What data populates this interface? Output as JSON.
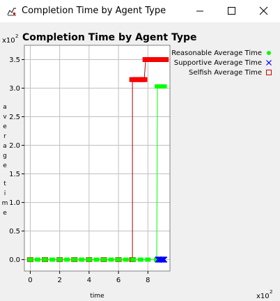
{
  "window": {
    "title": "Completion Time by Agent Type",
    "controls": [
      "minimize",
      "maximize",
      "close"
    ],
    "icon": "chart-app-icon"
  },
  "chart_data": {
    "type": "line",
    "title": "Completion Time by Agent Type",
    "xlabel": "time",
    "ylabel": "average time",
    "x_multiplier": "x10^2",
    "y_multiplier": "x10^2",
    "xlim": [
      -0.4,
      9.5
    ],
    "ylim": [
      -0.2,
      3.75
    ],
    "xticks": [
      0,
      2,
      4,
      6,
      8
    ],
    "yticks": [
      0.0,
      0.5,
      1.0,
      1.5,
      2.0,
      2.5,
      3.0,
      3.5
    ],
    "grid": true,
    "legend_position": "right",
    "series": [
      {
        "name": "Reasonable Average Time",
        "color": "#00ff00",
        "marker": "filled-circle",
        "points": [
          [
            0,
            0
          ],
          [
            0.5,
            0
          ],
          [
            1,
            0
          ],
          [
            1.5,
            0
          ],
          [
            2,
            0
          ],
          [
            2.5,
            0
          ],
          [
            3,
            0
          ],
          [
            3.5,
            0
          ],
          [
            4,
            0
          ],
          [
            4.5,
            0
          ],
          [
            5,
            0
          ],
          [
            5.5,
            0
          ],
          [
            6,
            0
          ],
          [
            6.5,
            0
          ],
          [
            7,
            0
          ],
          [
            7.5,
            0
          ],
          [
            8,
            0
          ],
          [
            8.6,
            0
          ],
          [
            8.65,
            3.03
          ],
          [
            8.8,
            3.03
          ],
          [
            8.95,
            3.03
          ],
          [
            9.1,
            3.03
          ]
        ]
      },
      {
        "name": "Supportive Average Time",
        "color": "#0000ff",
        "marker": "x",
        "points": [
          [
            8.7,
            0
          ],
          [
            8.8,
            0
          ],
          [
            8.9,
            0
          ],
          [
            9.0,
            0
          ],
          [
            9.1,
            0
          ]
        ]
      },
      {
        "name": "Selfish Average Time",
        "color": "#ff0000",
        "marker": "square",
        "points": [
          [
            0,
            0
          ],
          [
            1,
            0
          ],
          [
            2,
            0
          ],
          [
            3,
            0
          ],
          [
            4,
            0
          ],
          [
            5,
            0
          ],
          [
            6,
            0
          ],
          [
            6.95,
            0
          ],
          [
            6.95,
            3.15
          ],
          [
            7.2,
            3.15
          ],
          [
            7.4,
            3.15
          ],
          [
            7.6,
            3.15
          ],
          [
            7.75,
            3.15
          ],
          [
            7.85,
            3.5
          ],
          [
            8.1,
            3.5
          ],
          [
            8.4,
            3.5
          ],
          [
            8.7,
            3.5
          ],
          [
            9.0,
            3.5
          ],
          [
            9.2,
            3.5
          ]
        ]
      }
    ]
  }
}
